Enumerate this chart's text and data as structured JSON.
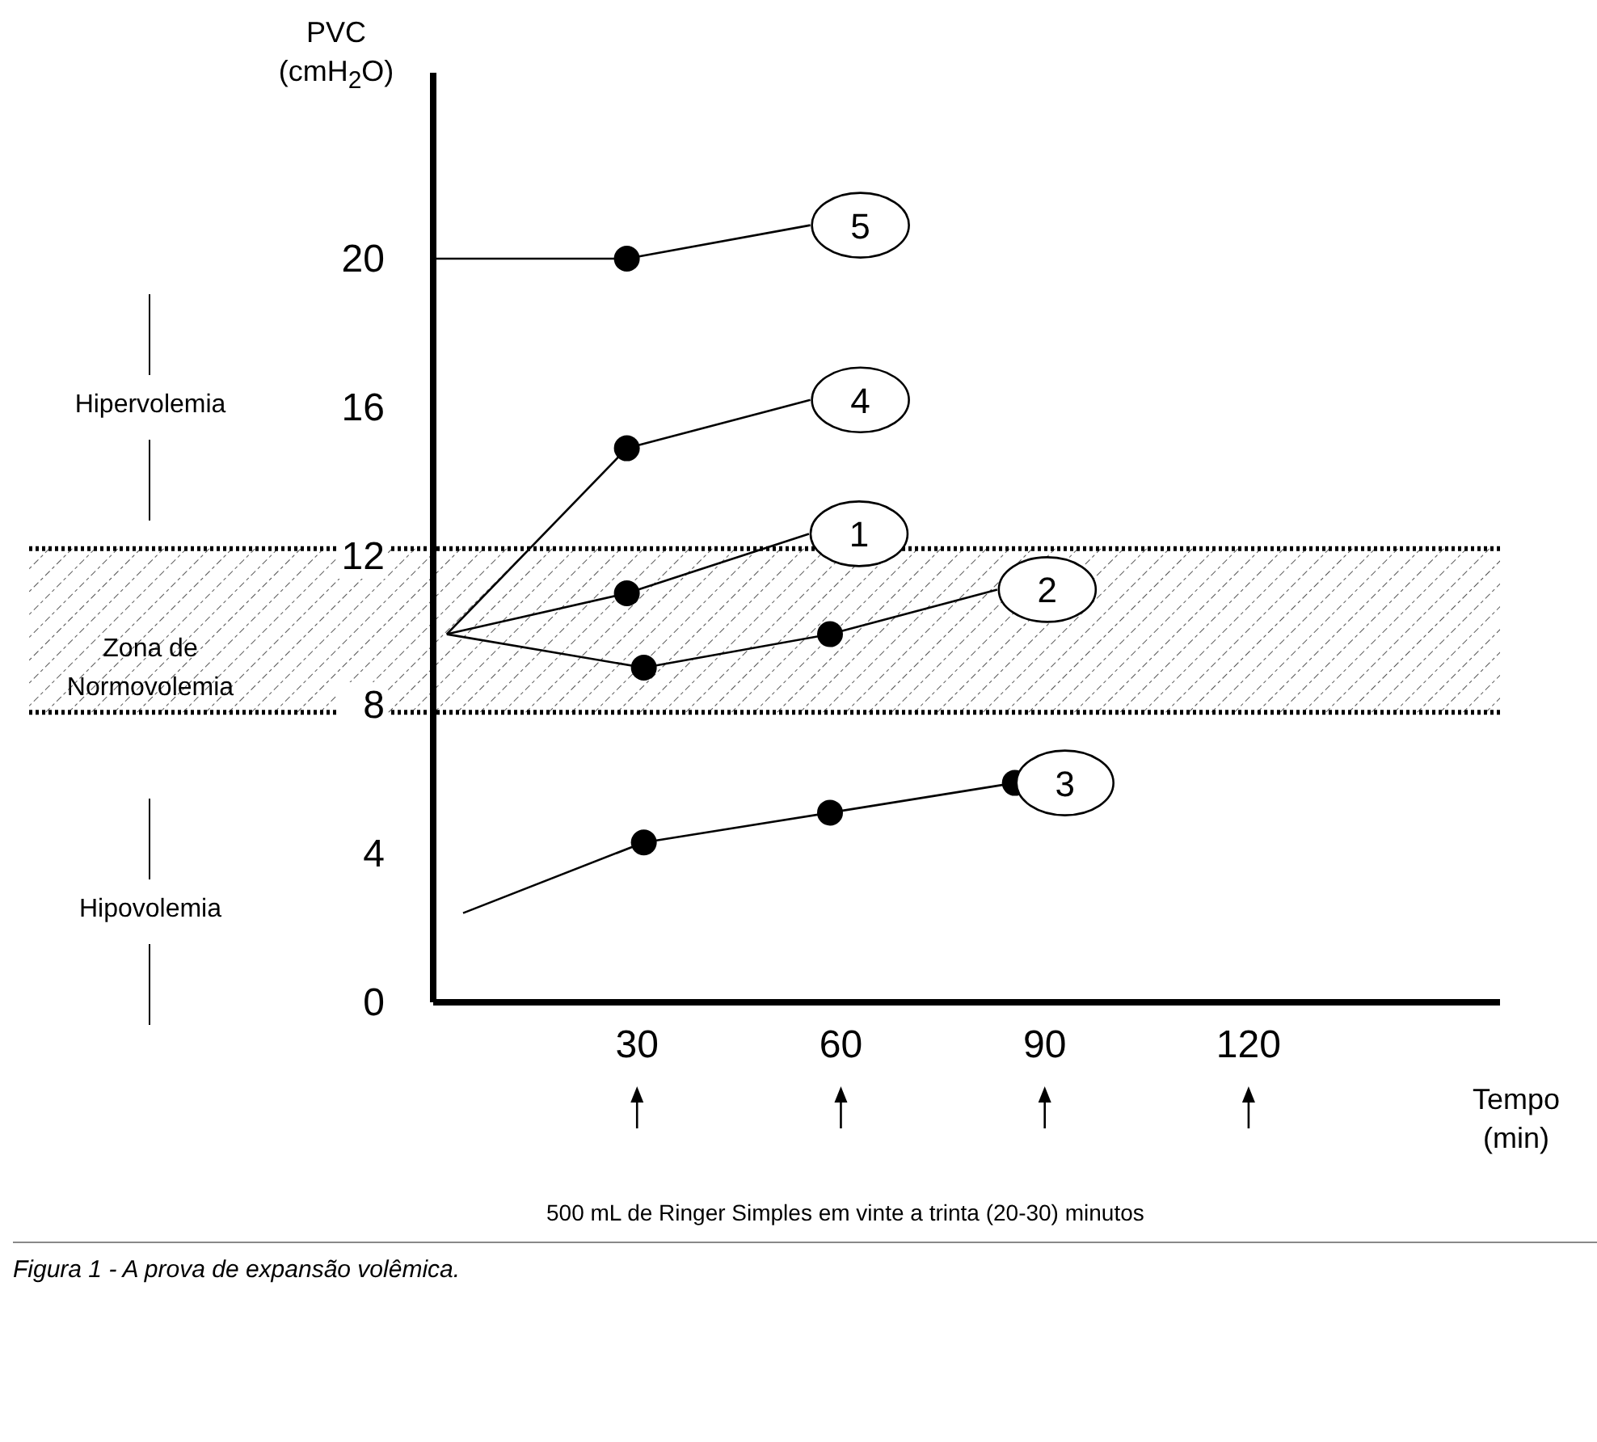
{
  "chart_data": {
    "type": "line",
    "ylabel": "PVC (cmH$_{2}$O)",
    "xlabel": "Tempo (min)",
    "xlim": [
      0,
      157
    ],
    "xticks": [
      30,
      60,
      90,
      120
    ],
    "ylim": [
      0,
      25
    ],
    "yticks": [
      0,
      4,
      8,
      12,
      16,
      20
    ],
    "grid": false,
    "legend": false,
    "marker": "none",
    "line_style": "solid",
    "series": [
      {
        "name": "5",
        "color": "#000000",
        "x": [
          0,
          28.5,
          55.5
        ],
        "values": [
          20,
          20,
          20.9
        ]
      },
      {
        "name": "4",
        "color": "#000000",
        "x": [
          2,
          28.5,
          55.5
        ],
        "values": [
          9.9,
          14.9,
          16.2
        ]
      },
      {
        "name": "1",
        "color": "#000000",
        "x": [
          2,
          28.5,
          55.3
        ],
        "values": [
          9.9,
          11.0,
          12.6
        ]
      },
      {
        "name": "2",
        "color": "#000000",
        "x": [
          2,
          31,
          58.4,
          83
        ],
        "values": [
          9.9,
          9.0,
          9.9,
          11.1
        ]
      },
      {
        "name": "3",
        "color": "#000000",
        "x": [
          4.4,
          31,
          58.4,
          85.6
        ],
        "values": [
          2.4,
          4.3,
          5.1,
          5.9
        ]
      },
      {
        "type": "scatter",
        "marker": "circle",
        "color": "#000000",
        "x": [
          28.5,
          28.5,
          28.5,
          31,
          58.4,
          31,
          58.4,
          85.6
        ],
        "values": [
          20,
          14.9,
          11.0,
          9.0,
          9.9,
          4.3,
          5.1,
          5.9
        ]
      }
    ],
    "bands": [
      {
        "axis": "y",
        "from": 7.8,
        "to": 12.2,
        "label": "Zona de Normovolemia"
      }
    ],
    "ref_lines": [
      {
        "axis": "y",
        "value": 7.8,
        "line_style": "dotted"
      },
      {
        "axis": "y",
        "value": 12.2,
        "line_style": "dotted"
      }
    ],
    "annotations": [
      "Hipervolemia",
      "Hipovolemia",
      "500 mL de Ringer Simples em vinte a trinta (20-30) minutos",
      "Figura 1 - A prova de expansão volêmica."
    ]
  }
}
